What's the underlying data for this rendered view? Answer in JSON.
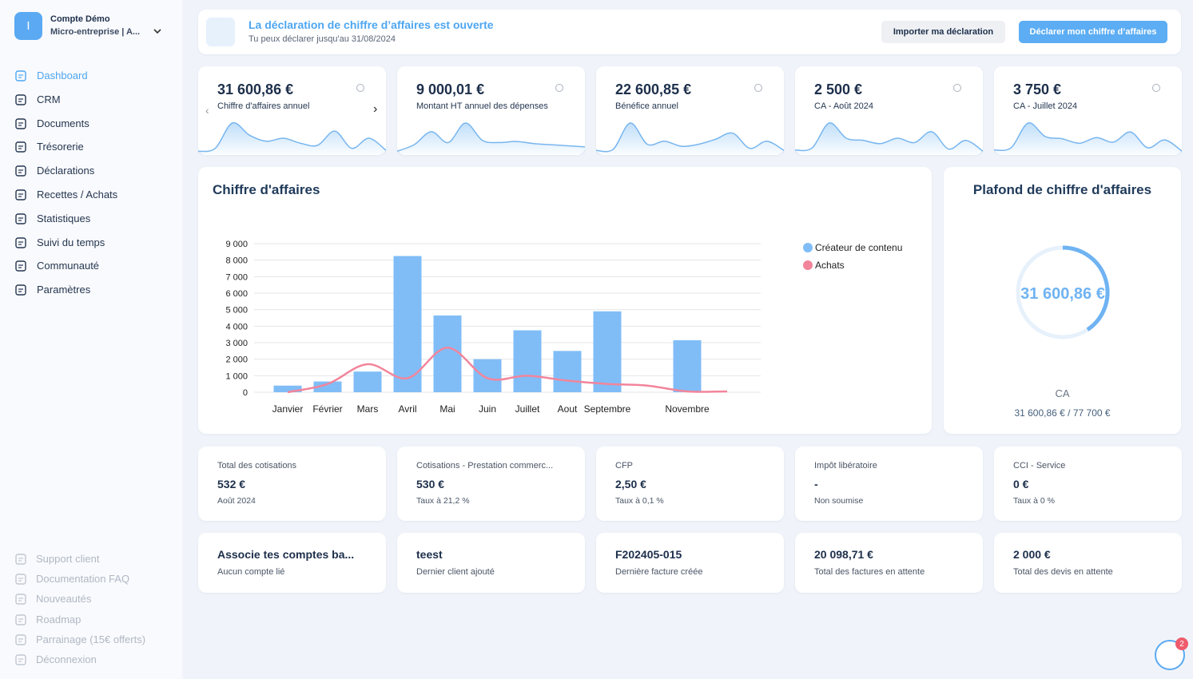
{
  "sidebar": {
    "avatar": "I",
    "account": "Compte Démo",
    "plan": "Micro-entreprise | A...",
    "nav": [
      "Dashboard",
      "CRM",
      "Documents",
      "Trésorerie",
      "Déclarations",
      "Recettes / Achats",
      "Statistiques",
      "Suivi du temps",
      "Communauté",
      "Paramètres"
    ],
    "footer": [
      "Support client",
      "Documentation FAQ",
      "Nouveautés",
      "Roadmap",
      "Parrainage (15€ offerts)",
      "Déconnexion"
    ]
  },
  "banner": {
    "title": "La déclaration de chiffre d’affaires est ouverte",
    "subtitle": "Tu peux déclarer jusqu'au 31/08/2024",
    "buttons": [
      "Importer ma déclaration",
      "Déclarer mon chiffre d’affaires"
    ]
  },
  "kpis": [
    {
      "value": "31 600,86 €",
      "label": "Chiffre d'affaires annuel",
      "trend": [
        2,
        5,
        30,
        18,
        12,
        15,
        10,
        8,
        22,
        5,
        15,
        3
      ]
    },
    {
      "value": "9 000,01 €",
      "label": "Montant HT annuel des dépenses",
      "trend": [
        2,
        8,
        20,
        10,
        28,
        12,
        10,
        11,
        9,
        8,
        7,
        6
      ]
    },
    {
      "value": "22 600,85 €",
      "label": "Bénéfice annuel",
      "trend": [
        3,
        4,
        30,
        9,
        12,
        7,
        9,
        14,
        20,
        5,
        12,
        3
      ]
    },
    {
      "value": "2 500 €",
      "label": "CA - Août 2024",
      "trend": [
        3,
        5,
        28,
        14,
        12,
        9,
        14,
        10,
        20,
        4,
        12,
        2
      ]
    },
    {
      "value": "3 750 €",
      "label": "CA - Juillet 2024",
      "trend": [
        3,
        5,
        27,
        15,
        13,
        9,
        14,
        10,
        19,
        5,
        12,
        2
      ]
    }
  ],
  "chart_data": {
    "type": "bar",
    "title": "Chiffre d'affaires",
    "categories": [
      "Janvier",
      "Février",
      "Mars",
      "Avril",
      "Mai",
      "Juin",
      "Juillet",
      "Aout",
      "Septembre",
      null,
      "Novembre",
      null
    ],
    "series": [
      {
        "name": "Créateur de contenu",
        "color": "#80bdf7",
        "values": [
          400,
          650,
          1250,
          8250,
          4650,
          2000,
          3750,
          2500,
          4900,
          0,
          3150,
          0
        ]
      },
      {
        "name": "Achats",
        "color": "#f2859b",
        "values": [
          0,
          500,
          1700,
          850,
          2700,
          850,
          1000,
          700,
          500,
          400,
          50,
          50
        ]
      }
    ],
    "ylim": [
      0,
      9000
    ],
    "yticks": [
      0,
      {
        "value": 1000,
        "label": "1 000"
      },
      {
        "value": 2000,
        "label": "2 000"
      },
      {
        "value": 3000,
        "label": "3 000"
      },
      {
        "value": 4000,
        "label": "4 000"
      },
      {
        "value": 5000,
        "label": "5 000"
      },
      {
        "value": 6000,
        "label": "6 000"
      },
      {
        "value": 7000,
        "label": "7 000"
      },
      {
        "value": 8000,
        "label": "8 000"
      },
      {
        "value": 9000,
        "label": "9 000"
      }
    ],
    "grid": true,
    "legend": "top-right"
  },
  "gauge": {
    "title": "Plafond de chiffre d'affaires",
    "value": 31600.86,
    "value_label": "31 600,86 €",
    "max": 77700,
    "caption": "CA",
    "ratio_label": "31 600,86 € / 77 700 €",
    "color": "#6fb3f2"
  },
  "stats": [
    {
      "label": "Total des cotisations",
      "value": "532 €",
      "note": "Août 2024"
    },
    {
      "label": "Cotisations - Prestation commerc...",
      "value": "530 €",
      "note": "Taux à 21,2 %"
    },
    {
      "label": "CFP",
      "value": "2,50 €",
      "note": "Taux à 0,1 %"
    },
    {
      "label": "Impôt libératoire",
      "value": "-",
      "note": "Non soumise"
    },
    {
      "label": "CCI - Service",
      "value": "0 €",
      "note": "Taux à 0 %"
    }
  ],
  "links": [
    {
      "value": "Associe tes comptes ba...",
      "label": "Aucun compte lié"
    },
    {
      "value": "teest",
      "label": "Dernier client ajouté"
    },
    {
      "value": "F202405-015",
      "label": "Dernière facture créée"
    },
    {
      "value": "20 098,71 €",
      "label": "Total des factures en attente"
    },
    {
      "value": "2 000 €",
      "label": "Total des devis en attente"
    }
  ],
  "help": {
    "badge": "2"
  }
}
